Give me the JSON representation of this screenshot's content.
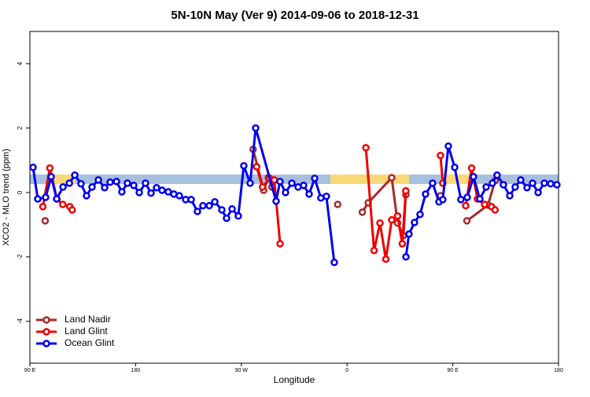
{
  "chart_data": {
    "type": "line",
    "title": "5N-10N May (Ver 9)   2014-09-06 to 2018-12-31",
    "x_label": "Longitude",
    "y_label": "XCO2 - MLO trend (ppm)",
    "xlim": [
      90,
      540
    ],
    "xticks": [
      {
        "value": 90,
        "label": "90 E"
      },
      180,
      {
        "value": 270,
        "label": "90 W"
      },
      {
        "value": 360,
        "label": "0"
      },
      {
        "value": 450,
        "label": "90 E"
      },
      {
        "value": 540,
        "label": "180"
      }
    ],
    "ylim": [
      -5.3,
      5
    ],
    "yticks": [
      -4,
      -2,
      0,
      2,
      4
    ],
    "legend": "bottom-left",
    "series": [
      {
        "name": "Land Nadir",
        "color": "#a52a2a",
        "x": [
          103,
          null,
          280,
          289,
          293,
          296,
          null,
          352,
          null,
          373,
          378,
          398,
          403,
          408,
          410,
          null,
          439.5,
          null,
          462,
          480,
          486
        ],
        "values": [
          -0.88,
          null,
          1.34,
          0.07,
          0.46,
          0.17,
          null,
          -0.37,
          null,
          -0.61,
          -0.32,
          0.46,
          -0.95,
          -1.34,
          -0.07,
          null,
          -0.1,
          null,
          -0.88,
          -0.39,
          0.37
        ]
      },
      {
        "name": "Land Glint",
        "color": "#ee0000",
        "x": [
          101,
          107,
          113,
          118,
          124,
          126,
          null,
          283,
          288,
          294,
          298,
          303,
          null,
          376,
          383,
          388,
          393,
          398,
          403,
          407,
          410,
          null,
          439.5,
          441.5,
          null,
          461,
          466,
          471,
          477,
          483,
          486
        ],
        "values": [
          -0.44,
          0.76,
          -0.2,
          -0.37,
          -0.44,
          -0.54,
          null,
          0.8,
          0.17,
          0.44,
          0.39,
          -1.59,
          null,
          1.39,
          -1.8,
          -0.95,
          -2.07,
          -0.85,
          -0.73,
          -1.59,
          0.05,
          null,
          1.15,
          0.29,
          null,
          -0.41,
          0.76,
          -0.2,
          -0.37,
          -0.44,
          -0.54
        ]
      },
      {
        "name": "Ocean Glint",
        "color": "#0000ee",
        "x": [
          92.7,
          96.7,
          103.4,
          108.1,
          112.8,
          118.2,
          123.6,
          128.2,
          133.5,
          138.2,
          142.9,
          148.3,
          153.6,
          158.3,
          163.7,
          168.3,
          173,
          178.4,
          183.1,
          188.4,
          193.1,
          197.8,
          202.5,
          207.8,
          212.5,
          217.2,
          222.6,
          227.3,
          232.6,
          237.3,
          242.7,
          247.4,
          253.4,
          257.4,
          262.1,
          267.4,
          272.1,
          277.5,
          282.2,
          299.6,
          302.9,
          307.6,
          313,
          318.3,
          323,
          327.7,
          332.4,
          337.7,
          342.4,
          349.1,
          null,
          410.1,
          412.7,
          417.4,
          422.1,
          426.8,
          432.8,
          438.2,
          441.5,
          446.2,
          451.6,
          456.9,
          462.3,
          467.6,
          473,
          478.4,
          483.7,
          487.7,
          493.1,
          498.5,
          503.1,
          507.8,
          513.2,
          517.9,
          522.6,
          527.9,
          533.3,
          538.6
        ],
        "values": [
          0.78,
          -0.2,
          -0.15,
          0.49,
          -0.2,
          0.17,
          0.29,
          0.54,
          0.27,
          -0.1,
          0.17,
          0.39,
          0.15,
          0.32,
          0.34,
          0.02,
          0.29,
          0.22,
          0,
          0.29,
          -0.02,
          0.15,
          0.07,
          0.02,
          -0.05,
          -0.1,
          -0.22,
          -0.22,
          -0.59,
          -0.41,
          -0.41,
          -0.29,
          -0.54,
          -0.8,
          -0.51,
          -0.73,
          0.83,
          0.29,
          2.0,
          -0.27,
          0.34,
          0,
          0.29,
          0.17,
          0.22,
          -0.05,
          0.44,
          -0.17,
          -0.12,
          -2.17,
          null,
          -2.0,
          -1.29,
          -0.93,
          -0.68,
          -0.05,
          0.29,
          -0.29,
          -0.22,
          1.44,
          0.78,
          -0.22,
          -0.15,
          0.49,
          -0.2,
          0.17,
          0.29,
          0.54,
          0.24,
          -0.1,
          0.17,
          0.39,
          0.15,
          0.29,
          0,
          0.29,
          0.27,
          0.24
        ]
      }
    ]
  }
}
